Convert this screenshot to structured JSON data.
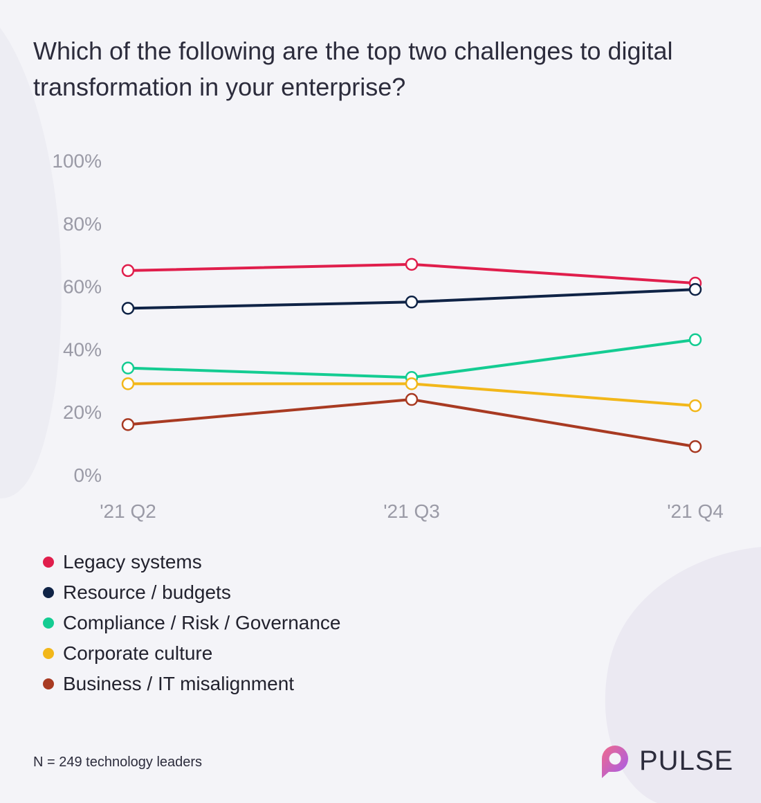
{
  "title": "Which of the following are the top two challenges to digital transformation in your enterprise?",
  "footnote": "N = 249 technology leaders",
  "brand": {
    "name": "PULSE",
    "gradient_start": "#f06a8a",
    "gradient_end": "#a15cf0"
  },
  "chart_data": {
    "type": "line",
    "title": "Which of the following are the top two challenges to digital transformation in your enterprise?",
    "x": [
      "'21 Q2",
      "'21 Q3",
      "'21 Q4"
    ],
    "y_ticks": [
      "0%",
      "20%",
      "40%",
      "60%",
      "80%",
      "100%"
    ],
    "ylim": [
      0,
      100
    ],
    "grid": false,
    "legend_position": "bottom-left",
    "series": [
      {
        "name": "Legacy systems",
        "color": "#e01e4c",
        "values": [
          65,
          67,
          61
        ]
      },
      {
        "name": "Resource / budgets",
        "color": "#0f2346",
        "values": [
          53,
          55,
          59
        ]
      },
      {
        "name": "Compliance / Risk / Governance",
        "color": "#14cc92",
        "values": [
          34,
          31,
          43
        ]
      },
      {
        "name": "Corporate culture",
        "color": "#f2b71a",
        "values": [
          29,
          29,
          22
        ]
      },
      {
        "name": "Business / IT misalignment",
        "color": "#a83a22",
        "values": [
          16,
          24,
          9
        ]
      }
    ]
  }
}
